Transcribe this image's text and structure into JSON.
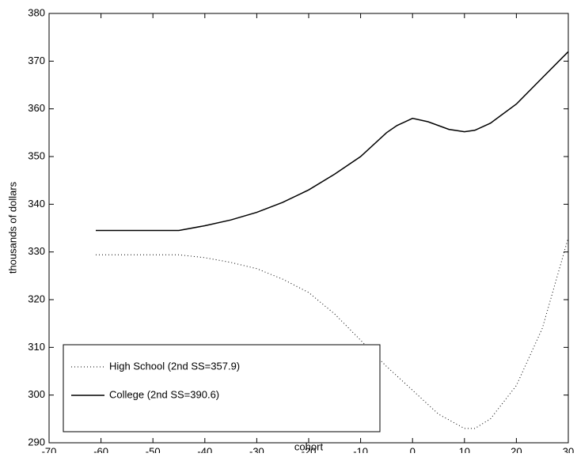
{
  "chart_data": {
    "type": "line",
    "x_label": "cohort",
    "y_label": "thousands of dollars",
    "xlim": [
      -70,
      30
    ],
    "ylim": [
      290,
      380
    ],
    "xticks": [
      -70,
      -60,
      -50,
      -40,
      -30,
      -20,
      -10,
      0,
      10,
      20,
      30
    ],
    "yticks": [
      290,
      300,
      310,
      320,
      330,
      340,
      350,
      360,
      370,
      380
    ],
    "legend": "lower left",
    "series": [
      {
        "name": "High School (2nd SS=357.9)",
        "color": "#000000",
        "line_style": "dotted",
        "x": [
          -61,
          -45,
          -40,
          -35,
          -30,
          -25,
          -20,
          -15,
          -10,
          -5,
          0,
          5,
          10,
          12,
          15,
          20,
          25,
          30
        ],
        "values": [
          329.4,
          329.4,
          328.8,
          327.8,
          326.5,
          324.3,
          321.5,
          317,
          311.5,
          306,
          301,
          296,
          293,
          293,
          295,
          302,
          314,
          333
        ]
      },
      {
        "name": "College (2nd SS=390.6)",
        "color": "#000000",
        "line_style": "solid",
        "x": [
          -61,
          -45,
          -40,
          -35,
          -30,
          -25,
          -20,
          -15,
          -10,
          -5,
          -3,
          0,
          3,
          7,
          10,
          12,
          15,
          20,
          25,
          30
        ],
        "values": [
          334.5,
          334.5,
          335.5,
          336.7,
          338.3,
          340.4,
          343,
          346.3,
          350,
          355,
          356.5,
          358,
          357.3,
          355.7,
          355.2,
          355.5,
          357,
          361,
          366.5,
          372
        ]
      }
    ]
  }
}
